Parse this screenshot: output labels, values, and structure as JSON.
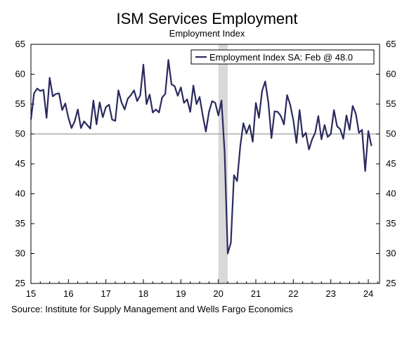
{
  "chart_data": {
    "type": "line",
    "title": "ISM Services Employment",
    "subtitle": "Employment Index",
    "source": "Source: Institute for Supply Management and Wells Fargo Economics",
    "ylim": [
      25,
      65
    ],
    "yticks": [
      25,
      30,
      35,
      40,
      45,
      50,
      55,
      60,
      65
    ],
    "xlim": [
      2015.0,
      2024.3
    ],
    "xticks": [
      {
        "label": "15",
        "value": 2015
      },
      {
        "label": "16",
        "value": 2016
      },
      {
        "label": "17",
        "value": 2017
      },
      {
        "label": "18",
        "value": 2018
      },
      {
        "label": "19",
        "value": 2019
      },
      {
        "label": "20",
        "value": 2020
      },
      {
        "label": "21",
        "value": 2021
      },
      {
        "label": "22",
        "value": 2022
      },
      {
        "label": "23",
        "value": 2023
      },
      {
        "label": "24",
        "value": 2024
      }
    ],
    "reference_line": 50,
    "recession": [
      2020.0,
      2020.25
    ],
    "legend": "top-right",
    "grid": false,
    "series": [
      {
        "name": "Employment Index SA: Feb @ 48.0",
        "color": "#2b2a5e",
        "start": "2015-01",
        "values": [
          52.4,
          56.8,
          57.6,
          57.2,
          57.4,
          52.7,
          59.4,
          56.3,
          56.7,
          56.8,
          54.0,
          55.1,
          52.7,
          51.0,
          52.1,
          54.1,
          51.0,
          52.1,
          51.5,
          50.9,
          55.6,
          51.6,
          55.3,
          52.8,
          54.5,
          54.9,
          52.4,
          52.2,
          57.3,
          55.3,
          54.1,
          55.9,
          56.5,
          57.3,
          55.5,
          56.5,
          61.6,
          55.0,
          56.6,
          53.6,
          54.1,
          53.6,
          56.1,
          56.7,
          62.4,
          58.3,
          58.0,
          56.4,
          57.8,
          55.2,
          55.8,
          53.7,
          58.1,
          55.0,
          56.2,
          53.1,
          50.4,
          53.7,
          55.5,
          55.2,
          53.1,
          55.6,
          47.0,
          30.0,
          31.8,
          43.1,
          42.1,
          47.9,
          51.8,
          50.1,
          51.5,
          48.7,
          55.2,
          52.7,
          57.2,
          58.8,
          55.3,
          49.3,
          53.8,
          53.7,
          53.0,
          51.6,
          56.5,
          54.9,
          52.3,
          48.5,
          54.0,
          49.5,
          50.2,
          47.4,
          49.1,
          50.2,
          53.0,
          49.1,
          51.5,
          49.5,
          50.0,
          54.0,
          51.3,
          50.8,
          49.2,
          53.1,
          50.7,
          54.7,
          53.4,
          50.2,
          50.7,
          43.8,
          50.5,
          48.0
        ]
      }
    ]
  }
}
